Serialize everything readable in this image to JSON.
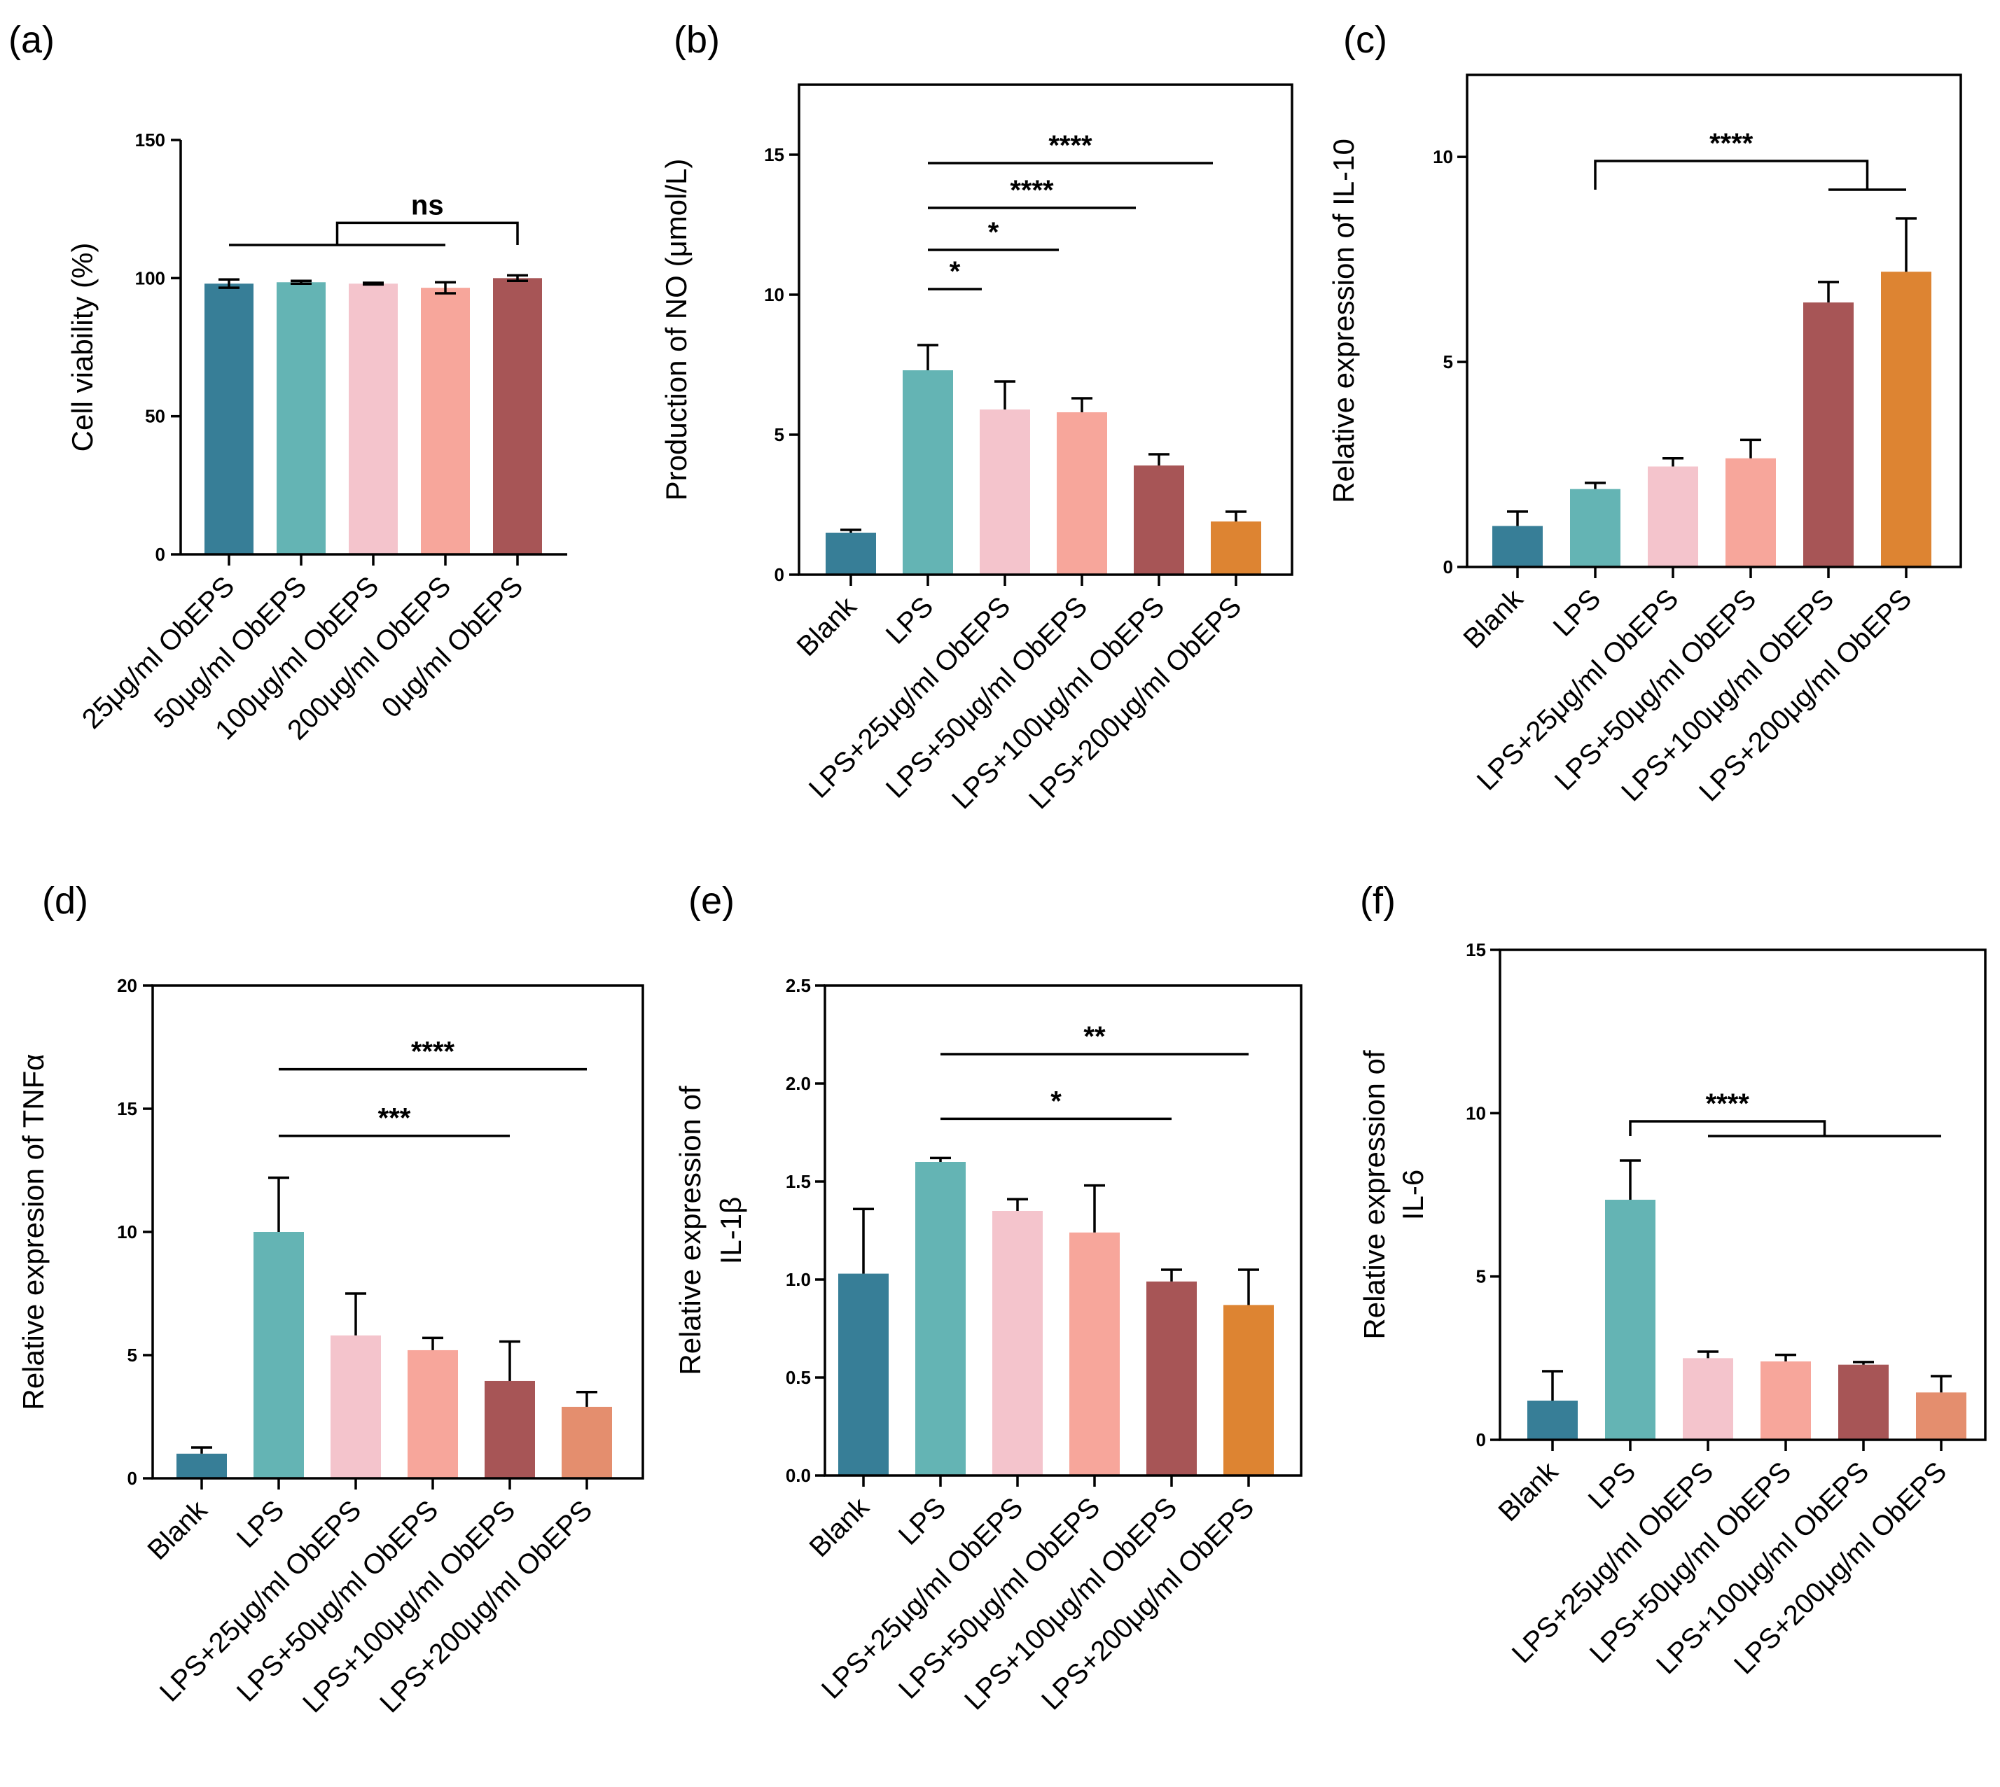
{
  "chart_data": [
    {
      "type": "bar",
      "panel_label": "(a)",
      "ylabel": "Cell viability (%)",
      "ylim": [
        0,
        150
      ],
      "yticks": [
        "0",
        "50",
        "100",
        "150"
      ],
      "frame": false,
      "categories": [
        "25μg/ml ObEPS",
        "50μg/ml ObEPS",
        "100μg/ml ObEPS",
        "200μg/ml ObEPS",
        "0μg/ml ObEPS"
      ],
      "values": [
        98,
        98.5,
        98,
        96.5,
        100
      ],
      "errors": [
        1.5,
        0.5,
        0.3,
        2,
        1
      ],
      "error_style": "both",
      "colors": [
        "#377e97",
        "#64b4b4",
        "#f4c4cc",
        "#f7a69b",
        "#a75556"
      ],
      "annotations": [
        {
          "text": "ns",
          "kind": "group",
          "group": [
            0,
            3
          ],
          "target": 4,
          "bracket_y": 120,
          "group_y": 112
        }
      ]
    },
    {
      "type": "bar",
      "panel_label": "(b)",
      "ylabel": "Production of NO (μmol/L)",
      "ylim": [
        0,
        17.5
      ],
      "yticks": [
        "0",
        "5",
        "10",
        "15"
      ],
      "frame": true,
      "categories": [
        "Blank",
        "LPS",
        "LPS+25μg/ml ObEPS",
        "LPS+50μg/ml ObEPS",
        "LPS+100μg/ml ObEPS",
        "LPS+200μg/ml ObEPS"
      ],
      "values": [
        1.5,
        7.3,
        5.9,
        5.8,
        3.9,
        1.9
      ],
      "errors": [
        0.1,
        0.9,
        1.0,
        0.5,
        0.4,
        0.35
      ],
      "error_style": "up",
      "colors": [
        "#377e97",
        "#64b4b4",
        "#f4c4cc",
        "#f7a69b",
        "#a75556",
        "#dd8432"
      ],
      "annotations": [
        {
          "text": "*",
          "kind": "line",
          "from": 1,
          "to": 1.7,
          "y": 10.2
        },
        {
          "text": "*",
          "kind": "line",
          "from": 1,
          "to": 2.7,
          "y": 11.6
        },
        {
          "text": "****",
          "kind": "line",
          "from": 1,
          "to": 3.7,
          "y": 13.1
        },
        {
          "text": "****",
          "kind": "line",
          "from": 1,
          "to": 4.7,
          "y": 14.7
        }
      ]
    },
    {
      "type": "bar",
      "panel_label": "(c)",
      "ylabel": "Relative expression of IL-10",
      "ylim": [
        0,
        12
      ],
      "yticks": [
        "0",
        "5",
        "10"
      ],
      "frame": true,
      "categories": [
        "Blank",
        "LPS",
        "LPS+25μg/ml ObEPS",
        "LPS+50μg/ml ObEPS",
        "LPS+100μg/ml ObEPS",
        "LPS+200μg/ml ObEPS"
      ],
      "values": [
        1.0,
        1.9,
        2.45,
        2.65,
        6.45,
        7.2
      ],
      "errors": [
        0.35,
        0.15,
        0.2,
        0.45,
        0.5,
        1.3
      ],
      "error_style": "up",
      "colors": [
        "#377e97",
        "#64b4b4",
        "#f4c4cc",
        "#f7a69b",
        "#a75556",
        "#dd8432"
      ],
      "annotations": [
        {
          "text": "****",
          "kind": "group",
          "group": [
            4,
            5
          ],
          "target": 1,
          "bracket_y": 9.9,
          "group_y": 9.2
        }
      ]
    },
    {
      "type": "bar",
      "panel_label": "(d)",
      "ylabel": "Relative expresion of TNFα",
      "ylim": [
        0,
        20
      ],
      "yticks": [
        "0",
        "5",
        "10",
        "15",
        "20"
      ],
      "frame": true,
      "categories": [
        "Blank",
        "LPS",
        "LPS+25μg/ml ObEPS",
        "LPS+50μg/ml ObEPS",
        "LPS+100μg/ml ObEPS",
        "LPS+200μg/ml ObEPS"
      ],
      "values": [
        1.0,
        10.0,
        5.8,
        5.2,
        3.95,
        2.9
      ],
      "errors": [
        0.25,
        2.2,
        1.7,
        0.5,
        1.6,
        0.6
      ],
      "error_style": "up",
      "colors": [
        "#377e97",
        "#64b4b4",
        "#f4c4cc",
        "#f7a69b",
        "#a75556",
        "#e48e6e"
      ],
      "annotations": [
        {
          "text": "***",
          "kind": "line",
          "from": 1,
          "to": 4,
          "y": 13.9
        },
        {
          "text": "****",
          "kind": "line",
          "from": 1,
          "to": 5,
          "y": 16.6
        }
      ]
    },
    {
      "type": "bar",
      "panel_label": "(e)",
      "ylabel": "Relative expression of",
      "ylabel2": "IL-1β",
      "ylim": [
        0,
        2.5
      ],
      "yticks": [
        "0.0",
        "0.5",
        "1.0",
        "1.5",
        "2.0",
        "2.5"
      ],
      "frame": true,
      "categories": [
        "Blank",
        "LPS",
        "LPS+25μg/ml ObEPS",
        "LPS+50μg/ml ObEPS",
        "LPS+100μg/ml ObEPS",
        "LPS+200μg/ml ObEPS"
      ],
      "values": [
        1.03,
        1.6,
        1.35,
        1.24,
        0.99,
        0.87
      ],
      "errors": [
        0.33,
        0.02,
        0.06,
        0.24,
        0.06,
        0.18
      ],
      "error_style": "up",
      "colors": [
        "#377e97",
        "#64b4b4",
        "#f4c4cc",
        "#f7a69b",
        "#a75556",
        "#dd8432"
      ],
      "annotations": [
        {
          "text": "*",
          "kind": "line",
          "from": 1,
          "to": 4,
          "y": 1.82
        },
        {
          "text": "**",
          "kind": "line",
          "from": 1,
          "to": 5,
          "y": 2.15
        }
      ]
    },
    {
      "type": "bar",
      "panel_label": "(f)",
      "ylabel": "Relative expression of",
      "ylabel2": "IL-6",
      "ylim": [
        0,
        15
      ],
      "yticks": [
        "0",
        "5",
        "10",
        "15"
      ],
      "frame": true,
      "categories": [
        "Blank",
        "LPS",
        "LPS+25μg/ml ObEPS",
        "LPS+50μg/ml ObEPS",
        "LPS+100μg/ml ObEPS",
        "LPS+200μg/ml ObEPS"
      ],
      "values": [
        1.2,
        7.35,
        2.5,
        2.4,
        2.3,
        1.45
      ],
      "errors": [
        0.9,
        1.2,
        0.2,
        0.2,
        0.08,
        0.5
      ],
      "error_style": "up",
      "colors": [
        "#377e97",
        "#64b4b4",
        "#f4c4cc",
        "#f7a69b",
        "#a75556",
        "#e48e6e"
      ],
      "annotations": [
        {
          "text": "****",
          "kind": "group",
          "group": [
            2,
            5
          ],
          "target": 1,
          "bracket_y": 9.75,
          "group_y": 9.3
        }
      ]
    }
  ]
}
